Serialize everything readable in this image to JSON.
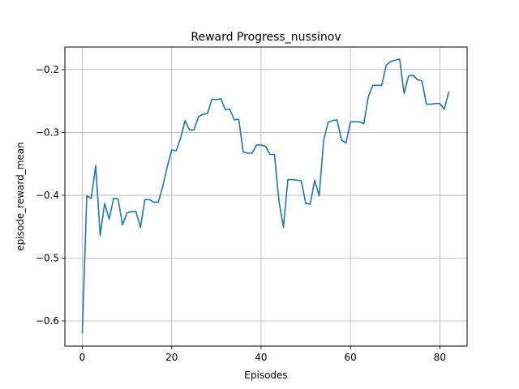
{
  "chart_data": {
    "type": "line",
    "title": "Reward Progress_nussinov",
    "xlabel": "Episodes",
    "ylabel": "episode_reward_mean",
    "xlim": [
      -3.9,
      86.1
    ],
    "ylim": [
      -0.64,
      -0.164
    ],
    "xticks": [
      0,
      20,
      40,
      60,
      80
    ],
    "yticks": [
      -0.6,
      -0.5,
      -0.4,
      -0.3,
      -0.2
    ],
    "xtick_labels": [
      "0",
      "20",
      "40",
      "60",
      "80"
    ],
    "ytick_labels": [
      "−0.6",
      "−0.5",
      "−0.4",
      "−0.3",
      "−0.2"
    ],
    "grid": true,
    "line_color": "#1f77b4",
    "series": [
      {
        "values": [
          -0.62,
          -0.401,
          -0.405,
          -0.353,
          -0.464,
          -0.413,
          -0.438,
          -0.405,
          -0.406,
          -0.447,
          -0.428,
          -0.426,
          -0.426,
          -0.451,
          -0.407,
          -0.407,
          -0.411,
          -0.411,
          -0.386,
          -0.355,
          -0.328,
          -0.329,
          -0.309,
          -0.281,
          -0.296,
          -0.296,
          -0.275,
          -0.271,
          -0.27,
          -0.247,
          -0.248,
          -0.246,
          -0.264,
          -0.263,
          -0.28,
          -0.279,
          -0.331,
          -0.333,
          -0.333,
          -0.32,
          -0.32,
          -0.322,
          -0.335,
          -0.335,
          -0.409,
          -0.451,
          -0.375,
          -0.375,
          -0.376,
          -0.377,
          -0.413,
          -0.414,
          -0.376,
          -0.401,
          -0.313,
          -0.284,
          -0.281,
          -0.28,
          -0.312,
          -0.317,
          -0.283,
          -0.283,
          -0.283,
          -0.286,
          -0.243,
          -0.225,
          -0.225,
          -0.225,
          -0.193,
          -0.187,
          -0.185,
          -0.183,
          -0.238,
          -0.21,
          -0.209,
          -0.216,
          -0.218,
          -0.255,
          -0.255,
          -0.254,
          -0.254,
          -0.263,
          -0.235
        ]
      }
    ]
  }
}
